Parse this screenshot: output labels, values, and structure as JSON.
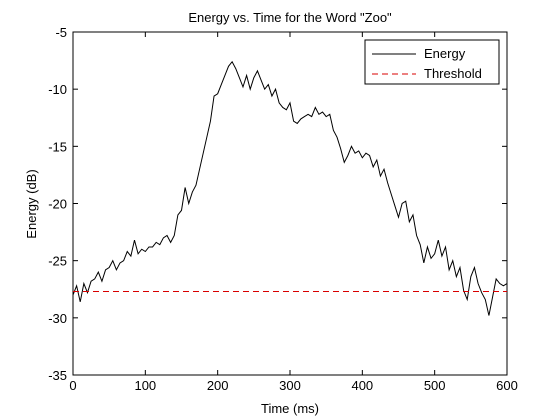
{
  "chart_data": {
    "type": "line",
    "title": "Energy vs. Time for the Word \"Zoo\"",
    "xlabel": "Time (ms)",
    "ylabel": "Energy (dB)",
    "xlim": [
      0,
      600
    ],
    "ylim": [
      -35,
      -5
    ],
    "xticks": [
      0,
      100,
      200,
      300,
      400,
      500,
      600
    ],
    "yticks": [
      -5,
      -10,
      -15,
      -20,
      -25,
      -30,
      -35
    ],
    "grid": false,
    "legend_position": "top-right",
    "series": [
      {
        "name": "Energy",
        "color": "#000000",
        "dash": "solid",
        "x": [
          0,
          5,
          10,
          15,
          20,
          25,
          30,
          35,
          40,
          45,
          50,
          55,
          60,
          65,
          70,
          75,
          80,
          85,
          90,
          95,
          100,
          105,
          110,
          115,
          120,
          125,
          130,
          135,
          140,
          145,
          150,
          155,
          160,
          165,
          170,
          175,
          180,
          185,
          190,
          195,
          200,
          205,
          210,
          215,
          220,
          225,
          230,
          235,
          240,
          245,
          250,
          255,
          260,
          265,
          270,
          275,
          280,
          285,
          290,
          295,
          300,
          305,
          310,
          315,
          320,
          325,
          330,
          335,
          340,
          345,
          350,
          355,
          360,
          365,
          370,
          375,
          380,
          385,
          390,
          395,
          400,
          405,
          410,
          415,
          420,
          425,
          430,
          435,
          440,
          445,
          450,
          455,
          460,
          465,
          470,
          475,
          480,
          485,
          490,
          495,
          500,
          505,
          510,
          515,
          520,
          525,
          530,
          535,
          540,
          545,
          550,
          555,
          560,
          565,
          570,
          575,
          580,
          585,
          590,
          595,
          600
        ],
        "values": [
          -28.0,
          -27.2,
          -28.6,
          -27.0,
          -27.8,
          -26.8,
          -26.6,
          -26.0,
          -26.8,
          -25.8,
          -25.6,
          -25.0,
          -25.8,
          -25.2,
          -25.0,
          -24.2,
          -24.6,
          -23.2,
          -24.4,
          -24.0,
          -24.2,
          -23.8,
          -23.8,
          -23.4,
          -23.6,
          -23.0,
          -22.8,
          -23.4,
          -22.8,
          -21.0,
          -20.6,
          -18.6,
          -20.0,
          -19.0,
          -18.4,
          -17.0,
          -15.6,
          -14.2,
          -12.8,
          -10.6,
          -10.4,
          -9.6,
          -8.8,
          -8.0,
          -7.6,
          -8.2,
          -9.0,
          -9.8,
          -8.8,
          -10.0,
          -9.0,
          -8.4,
          -9.2,
          -10.0,
          -9.6,
          -10.6,
          -10.0,
          -11.2,
          -11.6,
          -11.8,
          -11.2,
          -12.8,
          -13.0,
          -12.6,
          -12.4,
          -12.2,
          -12.4,
          -11.6,
          -12.2,
          -12.0,
          -12.4,
          -12.2,
          -13.6,
          -14.2,
          -15.2,
          -16.4,
          -15.8,
          -15.0,
          -15.6,
          -15.4,
          -16.0,
          -15.6,
          -15.8,
          -16.8,
          -16.2,
          -17.6,
          -17.0,
          -18.2,
          -19.2,
          -20.2,
          -21.2,
          -20.0,
          -19.8,
          -21.6,
          -21.0,
          -22.8,
          -23.6,
          -25.2,
          -23.8,
          -24.8,
          -24.4,
          -23.2,
          -24.6,
          -23.8,
          -25.8,
          -25.0,
          -26.4,
          -25.6,
          -27.6,
          -28.4,
          -26.4,
          -25.6,
          -27.0,
          -27.8,
          -28.4,
          -29.8,
          -28.2,
          -26.6,
          -27.0,
          -27.2,
          -27.0
        ]
      },
      {
        "name": "Threshold",
        "color": "#d90000",
        "dash": "dashed",
        "x": [
          0,
          600
        ],
        "values": [
          -27.7,
          -27.7
        ]
      }
    ]
  }
}
